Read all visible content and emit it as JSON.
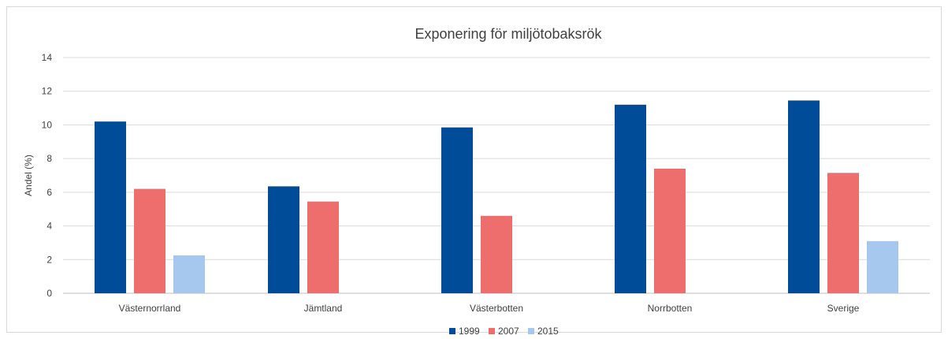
{
  "chart_data": {
    "type": "bar",
    "title": "Exponering för miljötobaksrök",
    "xlabel": "",
    "ylabel": "Andel (%)",
    "ylim": [
      0,
      14
    ],
    "yticks": [
      0,
      2,
      4,
      6,
      8,
      10,
      12,
      14
    ],
    "grid": true,
    "legend_position": "bottom",
    "categories": [
      "Västernorrland",
      "Jämtland",
      "Västerbotten",
      "Norrbotten",
      "Sverige"
    ],
    "series": [
      {
        "name": "1999",
        "color": "#004C99",
        "values": [
          10.2,
          6.35,
          9.85,
          11.2,
          11.45
        ]
      },
      {
        "name": "2007",
        "color": "#EE6E6E",
        "values": [
          6.2,
          5.45,
          4.6,
          7.4,
          7.15
        ]
      },
      {
        "name": "2015",
        "color": "#A6C8EE",
        "values": [
          2.25,
          null,
          null,
          null,
          3.1
        ]
      }
    ]
  }
}
